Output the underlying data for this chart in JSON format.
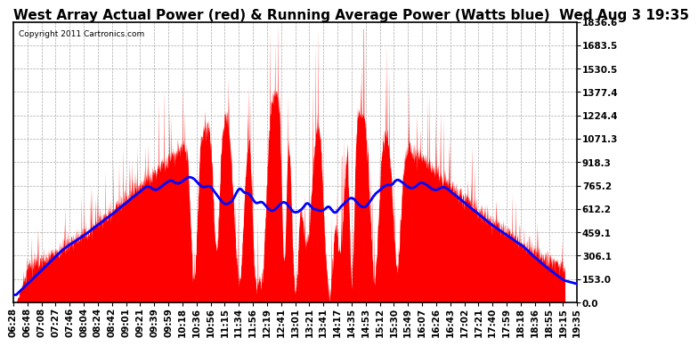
{
  "title": "West Array Actual Power (red) & Running Average Power (Watts blue)  Wed Aug 3 19:35",
  "copyright": "Copyright 2011 Cartronics.com",
  "ymax": 1836.6,
  "yticks": [
    0.0,
    153.0,
    306.1,
    459.1,
    612.2,
    765.2,
    918.3,
    1071.3,
    1224.4,
    1377.4,
    1530.5,
    1683.5,
    1836.6
  ],
  "xtick_labels": [
    "06:28",
    "06:48",
    "07:08",
    "07:27",
    "07:46",
    "08:04",
    "08:24",
    "08:42",
    "09:01",
    "09:21",
    "09:39",
    "09:59",
    "10:18",
    "10:36",
    "10:56",
    "11:15",
    "11:34",
    "11:56",
    "12:19",
    "12:41",
    "13:01",
    "13:21",
    "13:41",
    "14:17",
    "14:35",
    "14:53",
    "15:12",
    "15:30",
    "15:49",
    "16:07",
    "16:26",
    "16:43",
    "17:02",
    "17:21",
    "17:40",
    "17:59",
    "18:18",
    "18:36",
    "18:55",
    "19:15",
    "19:35"
  ],
  "bg_color": "#ffffff",
  "plot_bg_color": "#ffffff",
  "grid_color": "#aaaaaa",
  "red_color": "#ff0000",
  "blue_color": "#0000ff",
  "title_fontsize": 11,
  "axis_fontsize": 7.5
}
